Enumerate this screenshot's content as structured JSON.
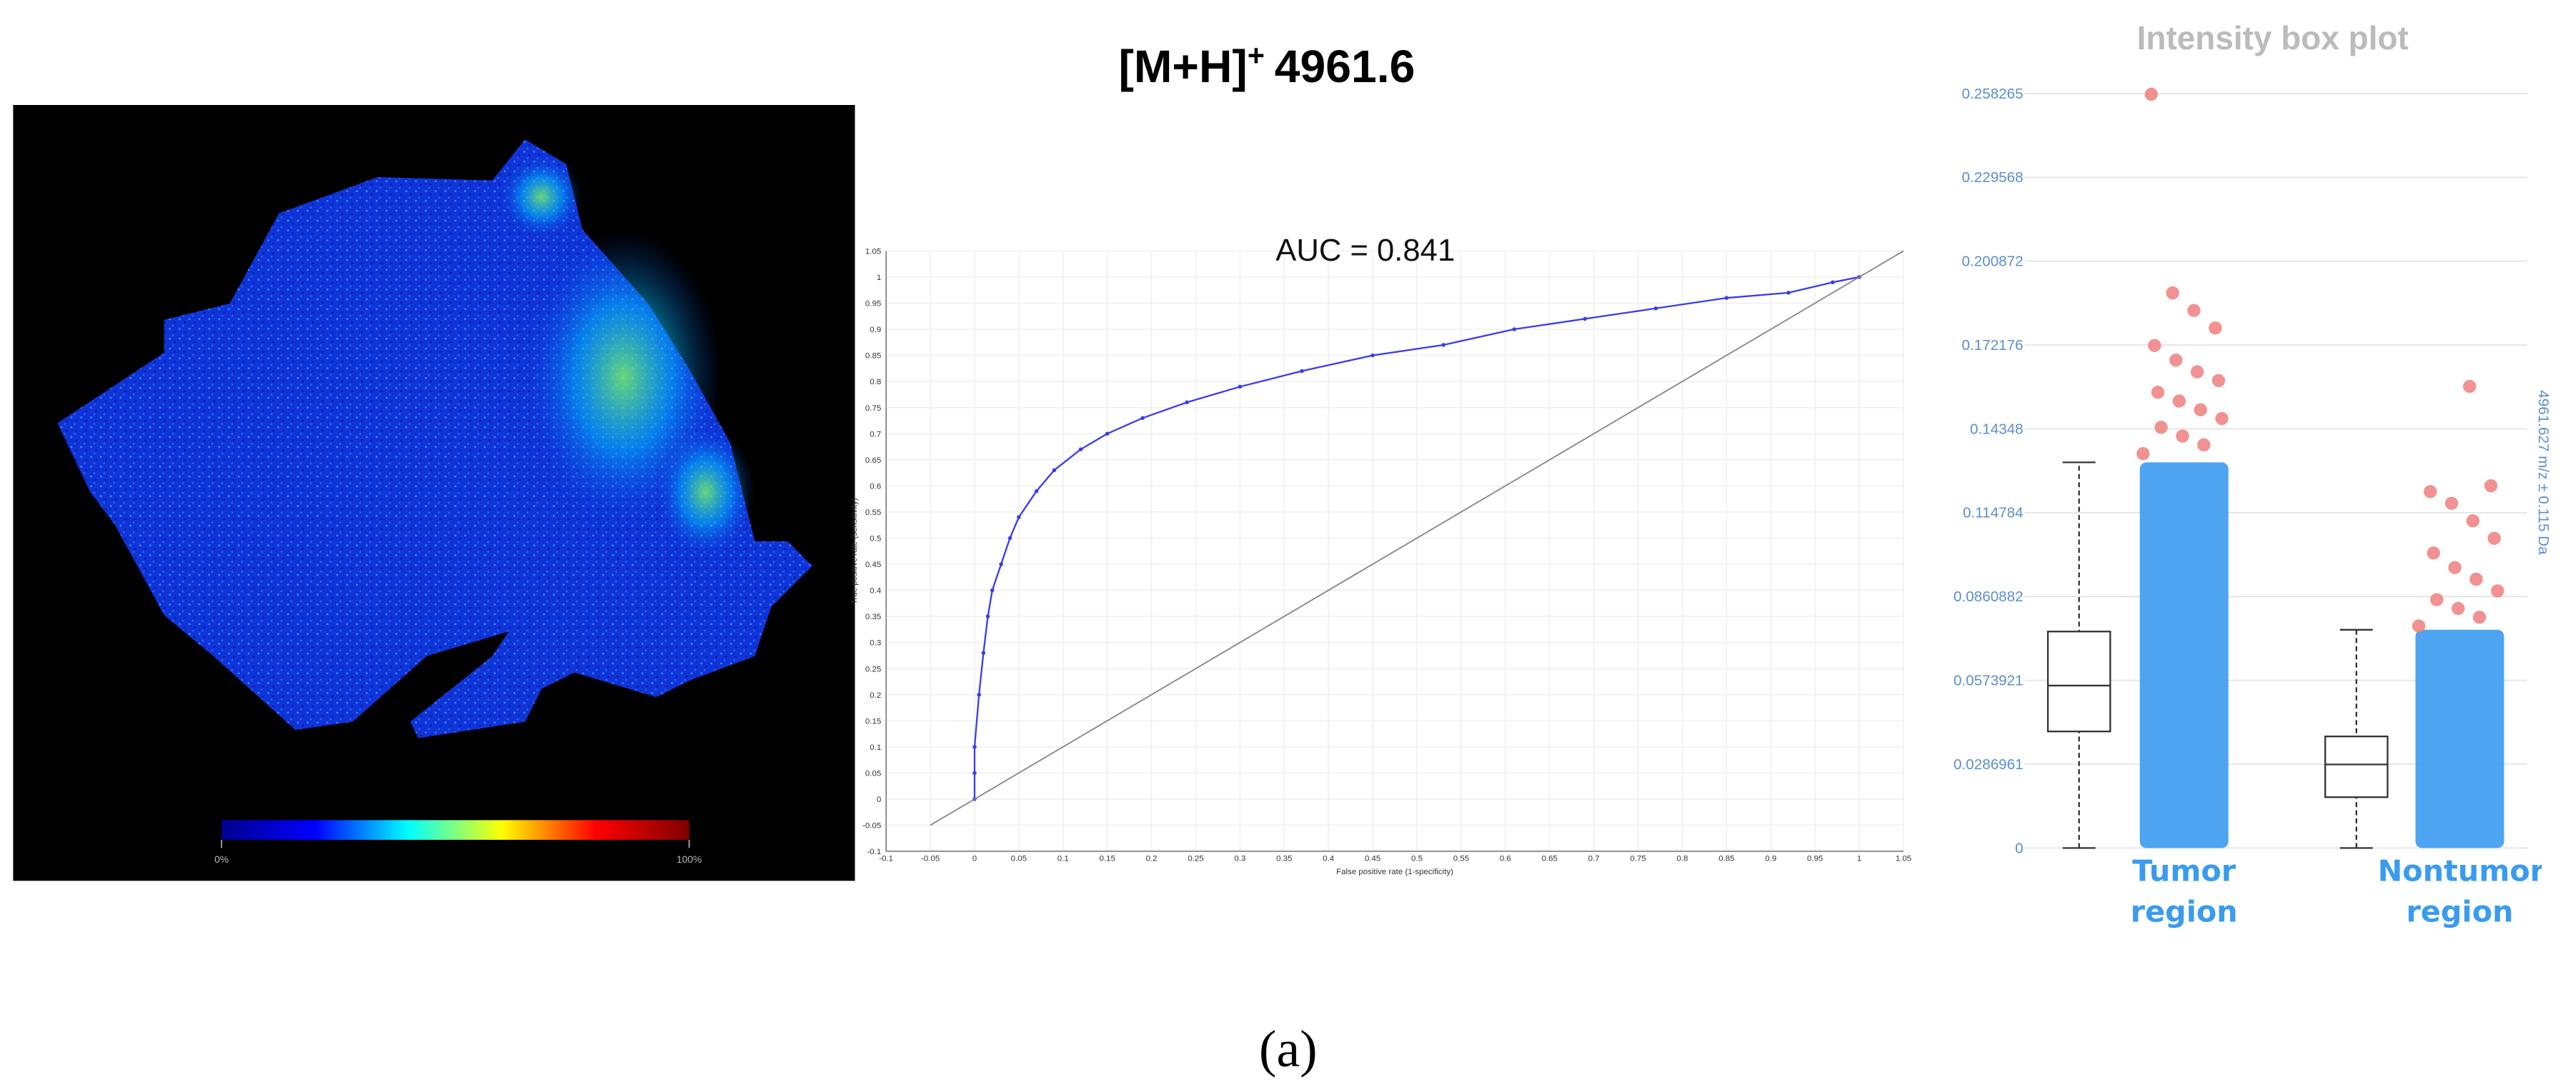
{
  "title": {
    "main": "[M+H]",
    "sup": "+",
    "mass": "4961.6"
  },
  "caption": "(a)",
  "chart_data": [
    {
      "type": "image",
      "colorbar": {
        "lim": [
          0,
          100
        ],
        "ticks": [
          {
            "value": 0,
            "label": "0%"
          },
          {
            "value": 100,
            "label": "100%"
          }
        ],
        "colors": [
          "#00008f",
          "#0000ff",
          "#00ffff",
          "#ffff00",
          "#ff0000",
          "#800000"
        ]
      }
    },
    {
      "type": "line",
      "annotation": "AUC = 0.841",
      "xlabel": "False positive rate (1-specificity)",
      "ylabel": "True positive rate (sensitivity)",
      "xlim": [
        -0.1,
        1.05
      ],
      "ylim": [
        -0.1,
        1.05
      ],
      "xticks": [
        -0.1,
        -0.05,
        0,
        0.05,
        0.1,
        0.15,
        0.2,
        0.25,
        0.3,
        0.35,
        0.4,
        0.45,
        0.5,
        0.55,
        0.6,
        0.65,
        0.7,
        0.75,
        0.8,
        0.85,
        0.9,
        0.95,
        1,
        1.05
      ],
      "yticks": [
        -0.1,
        -0.05,
        0,
        0.05,
        0.1,
        0.15,
        0.2,
        0.25,
        0.3,
        0.35,
        0.4,
        0.45,
        0.5,
        0.55,
        0.6,
        0.65,
        0.7,
        0.75,
        0.8,
        0.85,
        0.9,
        0.95,
        1,
        1.05
      ],
      "grid": true,
      "series": [
        {
          "color": "#3b3bf0",
          "markers": true,
          "x": [
            0,
            0,
            0,
            0.005,
            0.01,
            0.015,
            0.02,
            0.03,
            0.04,
            0.05,
            0.07,
            0.09,
            0.12,
            0.15,
            0.19,
            0.24,
            0.3,
            0.37,
            0.45,
            0.53,
            0.61,
            0.69,
            0.77,
            0.85,
            0.92,
            0.97,
            1
          ],
          "values": [
            0,
            0.05,
            0.1,
            0.2,
            0.28,
            0.35,
            0.4,
            0.45,
            0.5,
            0.54,
            0.59,
            0.63,
            0.67,
            0.7,
            0.73,
            0.76,
            0.79,
            0.82,
            0.85,
            0.87,
            0.9,
            0.92,
            0.94,
            0.96,
            0.97,
            0.99,
            1
          ]
        },
        {
          "color": "#888888",
          "markers": false,
          "x": [
            -0.05,
            1.05
          ],
          "values": [
            -0.05,
            1.05
          ]
        }
      ]
    },
    {
      "type": "box",
      "title": "Intensity box plot",
      "ylabel": "4961.627 m/z ± 0.115 Da",
      "categories": [
        "Tumor region",
        "Nontumor region"
      ],
      "ylim": [
        0,
        0.258265
      ],
      "yticks": [
        0,
        0.0286961,
        0.0573921,
        0.0860882,
        0.114784,
        0.14348,
        0.172176,
        0.200872,
        0.229568,
        0.258265
      ],
      "grid": true,
      "box_color": "#333333",
      "point_color": "#3a9bef",
      "outlier_color": "#f08585",
      "label_color": "#3a9bef",
      "boxes": [
        {
          "low": 0,
          "q1": 0.0399,
          "median": 0.0556,
          "q3": 0.0741,
          "high": 0.132,
          "outliers": [
            0.135,
            0.138,
            0.141,
            0.144,
            0.147,
            0.15,
            0.153,
            0.156,
            0.16,
            0.163,
            0.167,
            0.172,
            0.178,
            0.184,
            0.19,
            0.258
          ]
        },
        {
          "low": 0,
          "q1": 0.0174,
          "median": 0.0286,
          "q3": 0.0382,
          "high": 0.0747,
          "outliers": [
            0.076,
            0.079,
            0.082,
            0.085,
            0.088,
            0.092,
            0.096,
            0.101,
            0.106,
            0.112,
            0.118,
            0.122,
            0.124,
            0.158
          ]
        }
      ]
    }
  ]
}
